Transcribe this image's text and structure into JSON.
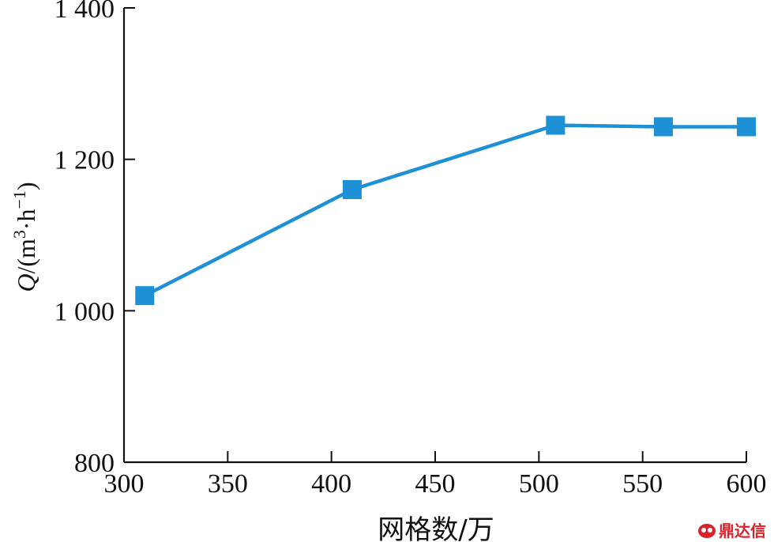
{
  "chart_data": {
    "type": "line",
    "x": [
      310,
      410,
      508,
      560,
      600
    ],
    "series": [
      {
        "values": [
          1020,
          1160,
          1245,
          1243,
          1243
        ]
      }
    ],
    "xlabel": "网格数/万",
    "ylabel": {
      "symbol": "Q",
      "unit_prefix": "/(m",
      "unit_exp1": "3",
      "unit_mid": "·h",
      "unit_exp2": "−1",
      "unit_suffix": ")"
    },
    "xlim": [
      300,
      600
    ],
    "ylim": [
      800,
      1400
    ],
    "xticks": [
      300,
      350,
      400,
      450,
      500,
      550,
      600
    ],
    "xtick_labels": [
      "300",
      "350",
      "400",
      "450",
      "500",
      "550",
      "600"
    ],
    "yticks": [
      800,
      1000,
      1200,
      1400
    ],
    "ytick_labels": [
      "800",
      "1 000",
      "1 200",
      "1 400"
    ],
    "grid": false,
    "marker": "square",
    "color": "#1e90d6"
  },
  "watermark": {
    "text": "鼎达信"
  }
}
